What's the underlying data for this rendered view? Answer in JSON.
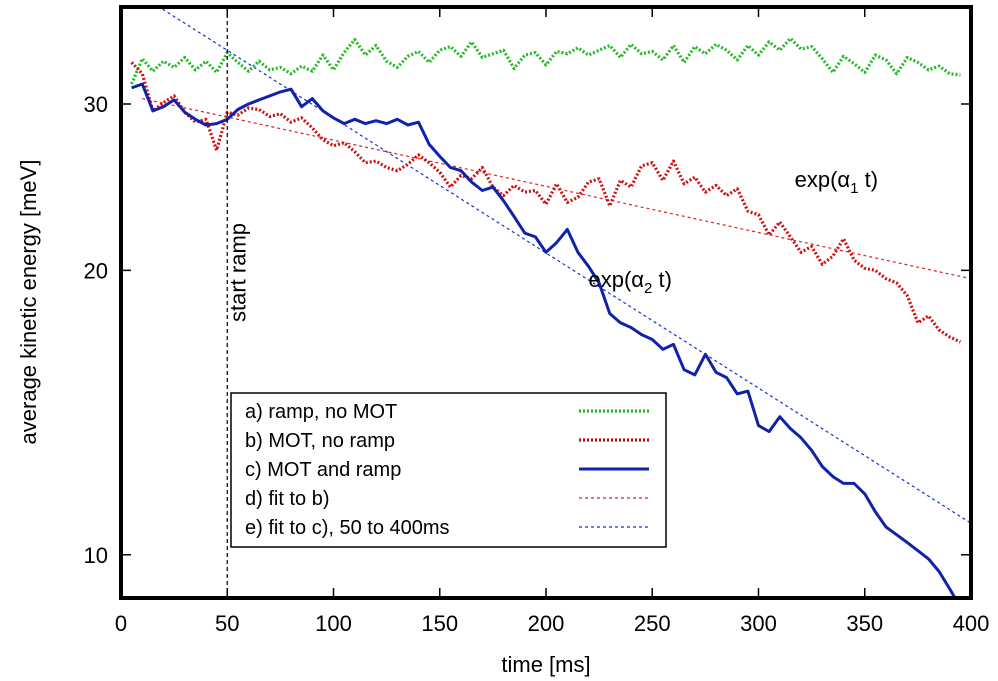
{
  "chart_data": {
    "type": "line",
    "xlabel": "time [ms]",
    "ylabel": "average kinetic energy [meV]",
    "xlim": [
      0,
      400
    ],
    "ylim": [
      9,
      38
    ],
    "yscale": "log",
    "grid": false,
    "legend_placement": "bottom-center",
    "xticks": [
      0,
      50,
      100,
      150,
      200,
      250,
      300,
      350,
      400
    ],
    "yticks": [
      10,
      20,
      30
    ],
    "vline": {
      "x": 50,
      "label": "start ramp"
    },
    "annotations": [
      {
        "text": "exp(α1 t)",
        "x": 317,
        "y": 24.5
      },
      {
        "text": "exp(α2 t)",
        "x": 220,
        "y": 19.2
      }
    ],
    "series": [
      {
        "name": "a) ramp, no MOT",
        "color": "#22bb22",
        "style": "dotted-thick",
        "x": [
          5,
          10,
          15,
          20,
          25,
          30,
          35,
          40,
          45,
          50,
          55,
          60,
          65,
          70,
          75,
          80,
          85,
          90,
          95,
          100,
          105,
          110,
          115,
          120,
          125,
          130,
          135,
          140,
          145,
          150,
          155,
          160,
          165,
          170,
          175,
          180,
          185,
          190,
          195,
          200,
          205,
          210,
          215,
          220,
          225,
          230,
          235,
          240,
          245,
          250,
          255,
          260,
          265,
          270,
          275,
          280,
          285,
          290,
          295,
          300,
          305,
          310,
          315,
          320,
          325,
          330,
          335,
          340,
          345,
          350,
          355,
          360,
          365,
          370,
          375,
          380,
          385,
          390,
          395
        ],
        "values": [
          31.5,
          33.5,
          32.5,
          33.3,
          32.8,
          33.6,
          32.6,
          33.3,
          32.4,
          34.0,
          33.2,
          32.5,
          33.3,
          32.6,
          32.8,
          32.3,
          32.9,
          32.5,
          33.8,
          32.6,
          34.0,
          35.1,
          33.8,
          34.6,
          33.3,
          32.8,
          33.7,
          34.1,
          33.2,
          34.2,
          34.5,
          33.7,
          34.9,
          33.6,
          33.9,
          34.2,
          32.7,
          33.8,
          34.0,
          33.0,
          34.1,
          33.9,
          34.4,
          33.8,
          34.2,
          34.6,
          33.6,
          34.7,
          33.9,
          34.1,
          33.4,
          34.6,
          33.2,
          34.5,
          33.9,
          34.7,
          34.2,
          33.4,
          34.6,
          33.8,
          34.9,
          34.2,
          35.2,
          34.3,
          34.5,
          33.5,
          32.4,
          33.7,
          33.1,
          32.4,
          33.8,
          33.4,
          32.3,
          33.6,
          33.2,
          32.6,
          32.9,
          32.3,
          32.2
        ]
      },
      {
        "name": "b) MOT, no ramp",
        "color": "#cc1111",
        "style": "dotted-thick",
        "x": [
          5,
          10,
          15,
          20,
          25,
          30,
          35,
          40,
          45,
          50,
          55,
          60,
          65,
          70,
          75,
          80,
          85,
          90,
          95,
          100,
          105,
          110,
          115,
          120,
          125,
          130,
          135,
          140,
          145,
          150,
          155,
          160,
          165,
          170,
          175,
          180,
          185,
          190,
          195,
          200,
          205,
          210,
          215,
          220,
          225,
          230,
          235,
          240,
          245,
          250,
          255,
          260,
          265,
          270,
          275,
          280,
          285,
          290,
          295,
          300,
          305,
          310,
          315,
          320,
          325,
          330,
          335,
          340,
          345,
          350,
          355,
          360,
          365,
          370,
          375,
          380,
          385,
          390,
          395
        ],
        "values": [
          33.2,
          32.3,
          29.5,
          30.1,
          30.6,
          29.4,
          28.7,
          28.9,
          26.8,
          29.4,
          29.2,
          29.7,
          29.6,
          29.1,
          29.3,
          28.7,
          29.0,
          28.3,
          27.5,
          27.1,
          27.3,
          26.7,
          26.0,
          26.1,
          25.7,
          25.5,
          25.9,
          26.5,
          26.0,
          25.4,
          24.5,
          25.2,
          25.0,
          25.7,
          24.5,
          24.0,
          24.6,
          24.2,
          24.3,
          23.5,
          24.7,
          23.6,
          23.9,
          24.8,
          25.0,
          23.4,
          24.9,
          24.5,
          25.8,
          26.0,
          24.9,
          26.1,
          24.7,
          25.1,
          24.2,
          24.6,
          24.0,
          24.4,
          23.1,
          22.9,
          21.8,
          22.5,
          21.7,
          20.9,
          21.2,
          20.3,
          20.7,
          21.6,
          20.5,
          20.1,
          20.0,
          19.6,
          19.4,
          18.8,
          17.6,
          17.9,
          17.3,
          17.0,
          16.8
        ]
      },
      {
        "name": "c) MOT and ramp",
        "color": "#1122aa",
        "style": "solid",
        "x": [
          5,
          10,
          15,
          20,
          25,
          30,
          35,
          40,
          45,
          50,
          55,
          60,
          65,
          70,
          75,
          80,
          85,
          90,
          95,
          100,
          105,
          110,
          115,
          120,
          125,
          130,
          135,
          140,
          145,
          150,
          155,
          160,
          165,
          170,
          175,
          180,
          185,
          190,
          195,
          200,
          205,
          210,
          215,
          220,
          225,
          230,
          235,
          240,
          245,
          250,
          255,
          260,
          265,
          270,
          275,
          280,
          285,
          290,
          295,
          300,
          305,
          310,
          315,
          320,
          325,
          330,
          335,
          340,
          345,
          350,
          355,
          360,
          365,
          370,
          375,
          380,
          385,
          390,
          395
        ],
        "values": [
          31.2,
          31.5,
          29.5,
          29.8,
          30.3,
          29.4,
          28.9,
          28.5,
          28.6,
          28.9,
          29.6,
          30.0,
          30.3,
          30.6,
          30.9,
          31.1,
          29.8,
          30.4,
          29.5,
          29.0,
          28.6,
          28.9,
          28.6,
          28.8,
          28.6,
          28.9,
          28.5,
          28.7,
          27.2,
          26.4,
          25.7,
          25.5,
          24.8,
          24.3,
          24.5,
          23.7,
          22.8,
          21.9,
          21.7,
          20.9,
          21.4,
          22.1,
          20.9,
          20.2,
          19.4,
          18.0,
          17.6,
          17.4,
          17.1,
          16.9,
          16.5,
          16.7,
          15.7,
          15.5,
          16.3,
          15.6,
          15.4,
          14.8,
          14.9,
          13.7,
          13.5,
          14.0,
          13.6,
          13.3,
          12.9,
          12.4,
          12.1,
          11.9,
          11.9,
          11.6,
          11.1,
          10.7,
          10.5,
          10.3,
          10.1,
          9.9,
          9.6,
          9.2,
          8.8
        ]
      },
      {
        "name": "d) fit to b)",
        "color": "#dd2222",
        "style": "dotted-thin",
        "x": [
          10,
          400
        ],
        "values": [
          30.4,
          19.6
        ]
      },
      {
        "name": "e) fit to c), 50 to 400ms",
        "color": "#1133cc",
        "style": "dotted-thin",
        "x": [
          10,
          400
        ],
        "values": [
          39.0,
          10.8
        ]
      }
    ]
  }
}
